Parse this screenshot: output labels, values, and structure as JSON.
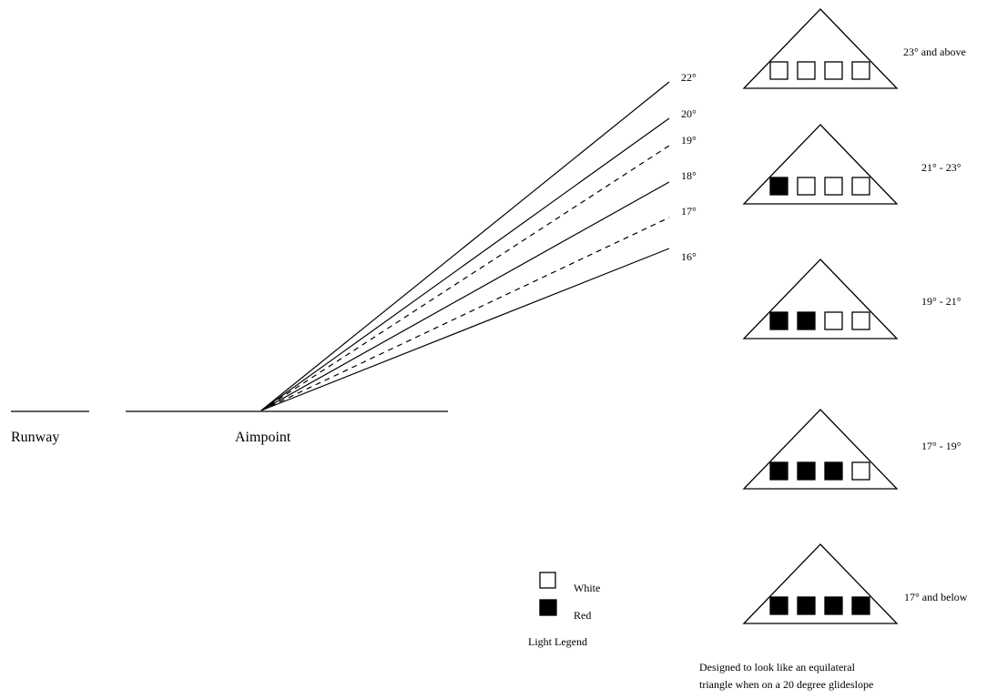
{
  "labels": {
    "runway": "Runway",
    "aimpoint": "Aimpoint"
  },
  "glideslope_angles": [
    {
      "label": "22°",
      "dashed": false
    },
    {
      "label": "20°",
      "dashed": false
    },
    {
      "label": "19°",
      "dashed": true
    },
    {
      "label": "18°",
      "dashed": false
    },
    {
      "label": "17°",
      "dashed": true
    },
    {
      "label": "16°",
      "dashed": false
    }
  ],
  "light_indicators": [
    {
      "range": "23° and above",
      "lights": [
        "white",
        "white",
        "white",
        "white"
      ]
    },
    {
      "range": "21° - 23°",
      "lights": [
        "red",
        "white",
        "white",
        "white"
      ]
    },
    {
      "range": "19° - 21°",
      "lights": [
        "red",
        "red",
        "white",
        "white"
      ]
    },
    {
      "range": "17° - 19°",
      "lights": [
        "red",
        "red",
        "red",
        "white"
      ]
    },
    {
      "range": "17° and below",
      "lights": [
        "red",
        "red",
        "red",
        "red"
      ]
    }
  ],
  "legend": {
    "white_label": "White",
    "red_label": "Red",
    "title": "Light Legend"
  },
  "note": {
    "line1": "Designed to look like an equilateral",
    "line2": "triangle when on a 20 degree glideslope"
  },
  "colors": {
    "white": "#ffffff",
    "red": "#000000",
    "stroke": "#000000"
  }
}
